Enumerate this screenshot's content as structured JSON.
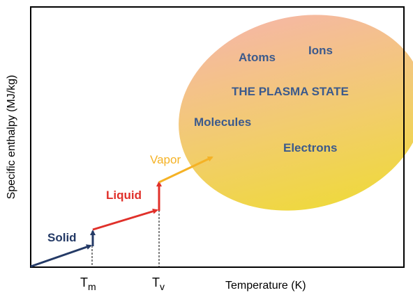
{
  "axes": {
    "ylabel": "Specific enthalpy (MJ/kg)",
    "xlabel": "Temperature (K)",
    "ticks": [
      {
        "main": "T",
        "sub": "m"
      },
      {
        "main": "T",
        "sub": "v"
      }
    ]
  },
  "phases": {
    "solid": {
      "label": "Solid",
      "color": "#243a66"
    },
    "liquid": {
      "label": "Liquid",
      "color": "#e0302a"
    },
    "vapor": {
      "label": "Vapor",
      "color": "#f5b225"
    }
  },
  "plasma": {
    "title": "THE PLASMA STATE",
    "particles": [
      "Atoms",
      "Ions",
      "Molecules",
      "Electrons"
    ],
    "text_color": "#3c5a8c",
    "gradient": {
      "top": "#f5b9a0",
      "mid": "#f2cc6e",
      "bottom": "#efd840"
    }
  }
}
